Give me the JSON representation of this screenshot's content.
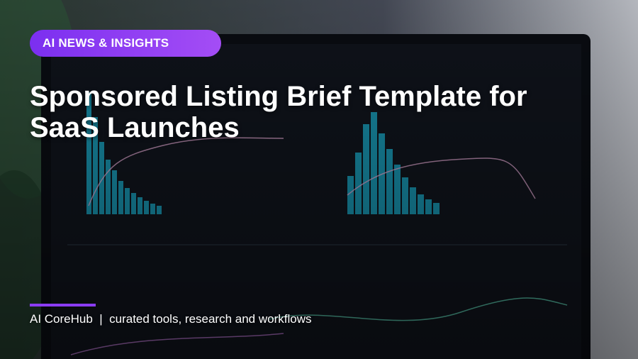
{
  "badge": "AI NEWS & INSIGHTS",
  "title": "Sponsored Listing Brief Template for SaaS Launches",
  "footer": "AI CoreHub  |  curated tools, research and workflows"
}
